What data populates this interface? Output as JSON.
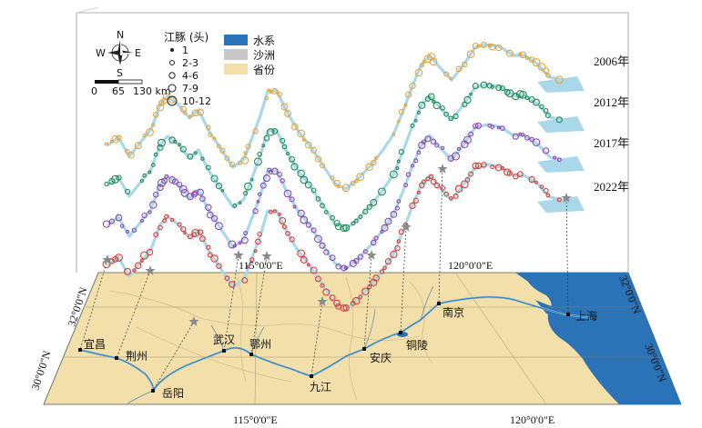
{
  "legend": {
    "title": "江豚 (头)",
    "sizes": [
      "1",
      "2-3",
      "4-6",
      "7-9",
      "10-12"
    ],
    "layers": [
      {
        "label": "水系",
        "color": "#2a73b6"
      },
      {
        "label": "沙洲",
        "color": "#c8c8c8"
      },
      {
        "label": "省份",
        "color": "#f3dfa9"
      }
    ]
  },
  "compass": {
    "n": "N",
    "s": "S",
    "e": "E",
    "w": "W"
  },
  "scale": {
    "labels": [
      "0",
      "65",
      "130 km"
    ]
  },
  "years": [
    {
      "label": "2006年",
      "color": "#e8a33a"
    },
    {
      "label": "2012年",
      "color": "#1f8a4c"
    },
    {
      "label": "2017年",
      "color": "#8e44ad"
    },
    {
      "label": "2022年",
      "color": "#e03a2f"
    }
  ],
  "cities": [
    {
      "name": "宜昌"
    },
    {
      "name": "荆州"
    },
    {
      "name": "岳阳"
    },
    {
      "name": "武汉"
    },
    {
      "name": "鄂州"
    },
    {
      "name": "九江"
    },
    {
      "name": "安庆"
    },
    {
      "name": "铜陵"
    },
    {
      "name": "南京"
    },
    {
      "name": "上海"
    }
  ],
  "axes": {
    "top_lon_1": "115°0'0\"E",
    "top_lon_2": "120°0'0\"E",
    "bottom_lon_1": "115°0'0\"E",
    "bottom_lon_2": "120°0'0\"E",
    "left_lat_1": "32°0'0\"N",
    "left_lat_2": "30°0'0\"N",
    "right_lat_1": "32°0'0\"N",
    "right_lat_2": "30°0'0\"N"
  },
  "colors": {
    "province": "#f3dfa9",
    "water": "#2a73b6",
    "river_light": "#a9d8ea",
    "sandbar": "#c8c8c8",
    "star": "#8a8a8a"
  }
}
